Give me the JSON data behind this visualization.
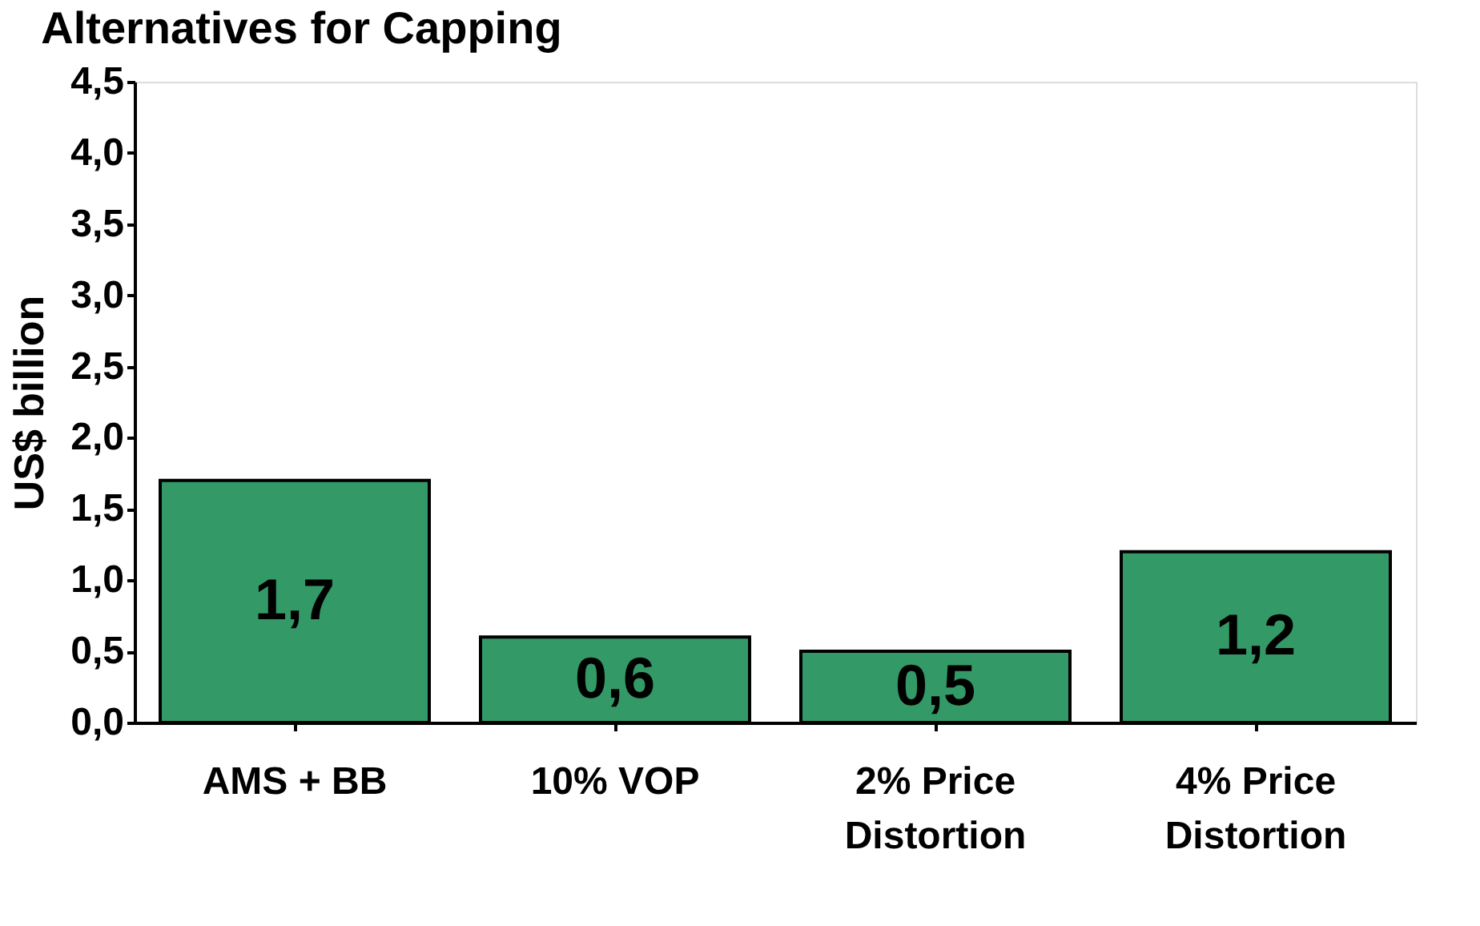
{
  "chart_data": {
    "type": "bar",
    "title": "Alternatives for Capping",
    "ylabel": "US$ billion",
    "categories": [
      "AMS + BB",
      "10% VOP",
      "2% Price\nDistortion",
      "4% Price\nDistortion"
    ],
    "values": [
      1.7,
      0.6,
      0.5,
      1.2
    ],
    "color": "#339966",
    "ylim": [
      0,
      4.5
    ],
    "yticks": [
      {
        "value": 0,
        "label": "0,0"
      },
      {
        "value": 0.5,
        "label": "0,5"
      },
      {
        "value": 1,
        "label": "1,0"
      },
      {
        "value": 1.5,
        "label": "1,5"
      },
      {
        "value": 2,
        "label": "2,0"
      },
      {
        "value": 2.5,
        "label": "2,5"
      },
      {
        "value": 3,
        "label": "3,0"
      },
      {
        "value": 3.5,
        "label": "3,5"
      },
      {
        "value": 4,
        "label": "4,0"
      },
      {
        "value": 4.5,
        "label": "4,5"
      }
    ],
    "value_labels": [
      "1,7",
      "0,6",
      "0,5",
      "1,2"
    ],
    "grid": false
  }
}
